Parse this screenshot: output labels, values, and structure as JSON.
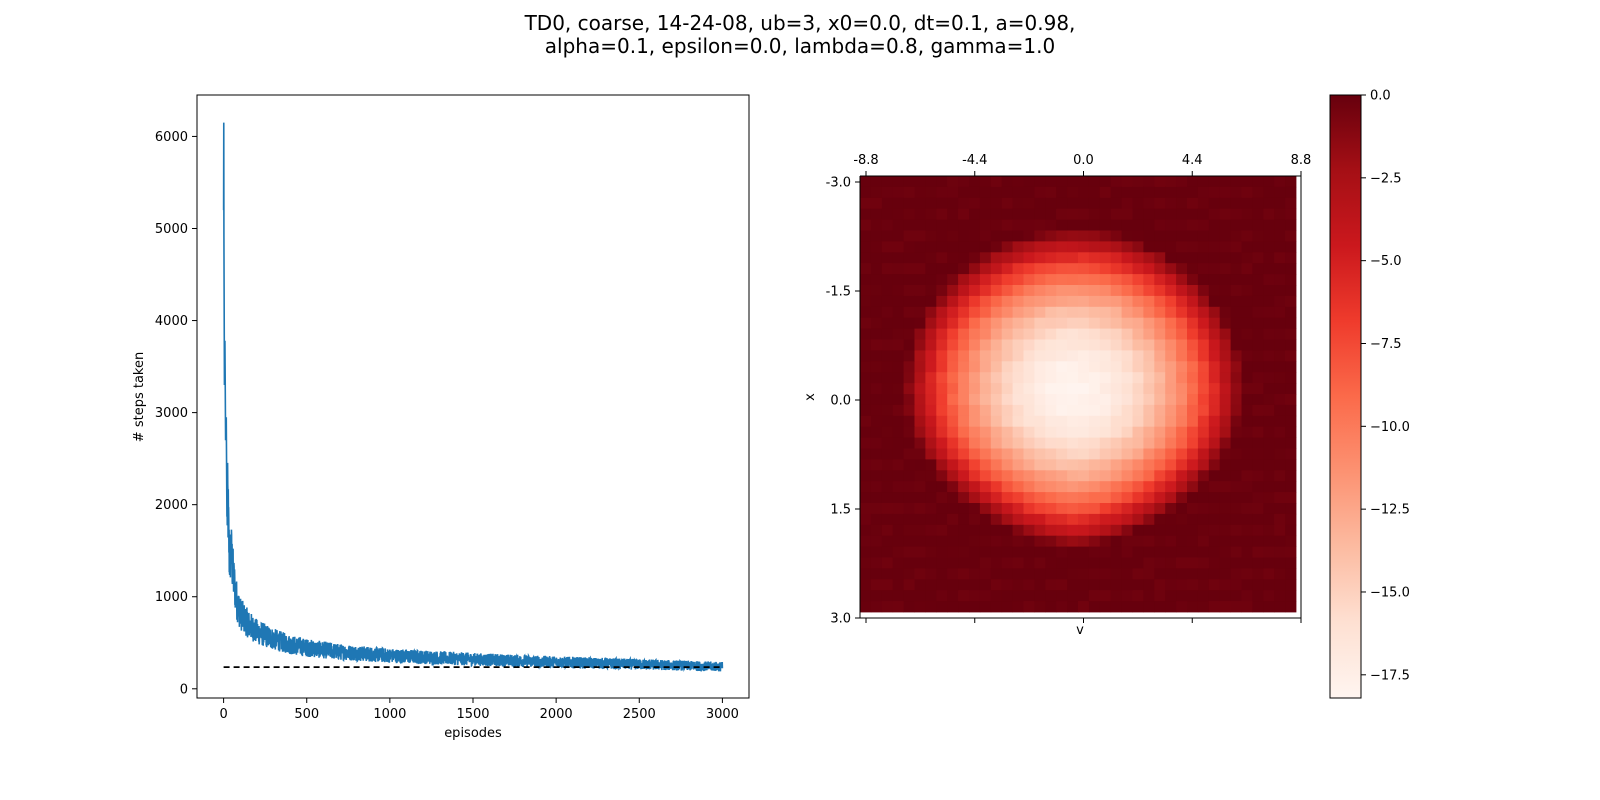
{
  "title": {
    "line1": "TD0, coarse, 14-24-08, ub=3, x0=0.0, dt=0.1, a=0.98,",
    "line2": "alpha=0.1, epsilon=0.0, lambda=0.8, gamma=1.0"
  },
  "chart_data": [
    {
      "type": "line",
      "xlabel": "episodes",
      "ylabel": "# steps taken",
      "xlim": [
        -160,
        3160
      ],
      "ylim": [
        -100,
        6450
      ],
      "xticks": [
        0,
        500,
        1000,
        1500,
        2000,
        2500,
        3000
      ],
      "yticks": [
        0,
        1000,
        2000,
        3000,
        4000,
        5000,
        6000
      ],
      "grid": false,
      "series": [
        {
          "color": "#1f77b4",
          "style": "solid",
          "episodes": 3000,
          "key_points": [
            [
              0,
              5200
            ],
            [
              1,
              6150
            ],
            [
              2,
              4900
            ],
            [
              5,
              3300
            ],
            [
              8,
              3780
            ],
            [
              12,
              2700
            ],
            [
              16,
              2950
            ],
            [
              20,
              1870
            ],
            [
              25,
              2050
            ],
            [
              35,
              1400
            ],
            [
              45,
              1500
            ],
            [
              60,
              1200
            ],
            [
              80,
              950
            ],
            [
              100,
              820
            ],
            [
              150,
              700
            ],
            [
              200,
              620
            ],
            [
              300,
              540
            ],
            [
              400,
              480
            ],
            [
              500,
              445
            ],
            [
              700,
              400
            ],
            [
              1000,
              360
            ],
            [
              1500,
              320
            ],
            [
              2000,
              290
            ],
            [
              2500,
              265
            ],
            [
              3000,
              240
            ]
          ]
        },
        {
          "color": "#000000",
          "style": "dashed",
          "x": [
            0,
            3000
          ],
          "y": [
            235,
            235
          ]
        }
      ]
    },
    {
      "type": "heatmap",
      "xlabel": "v",
      "ylabel": "x",
      "xticks": [
        "-8.8",
        "-4.4",
        "0.0",
        "4.4",
        "8.8"
      ],
      "yticks": [
        "-3.0",
        "-1.5",
        "0.0",
        "1.5",
        "3.0"
      ],
      "xlim": [
        -8.8,
        8.8
      ],
      "ylim": [
        -3.0,
        3.0
      ],
      "x_axis_position": "top",
      "colormap": "Reds_r",
      "colormap_stops": [
        "#fff5f0",
        "#fee0d2",
        "#fcbba1",
        "#fc9272",
        "#fb6a4a",
        "#ef3b2c",
        "#cb181d",
        "#a50f15",
        "#67000d"
      ],
      "grid_size": 40,
      "value_range": [
        -18.2,
        0.0
      ],
      "min_value": -18.0,
      "min_location": {
        "v": -0.2,
        "x": -0.1
      },
      "colorbar": {
        "ticks": [
          "0.0",
          "−2.5",
          "−5.0",
          "−7.5",
          "−10.0",
          "−12.5",
          "−15.0",
          "−17.5"
        ],
        "values": [
          0.0,
          -2.5,
          -5.0,
          -7.5,
          -10.0,
          -12.5,
          -15.0,
          -17.5
        ]
      }
    }
  ]
}
